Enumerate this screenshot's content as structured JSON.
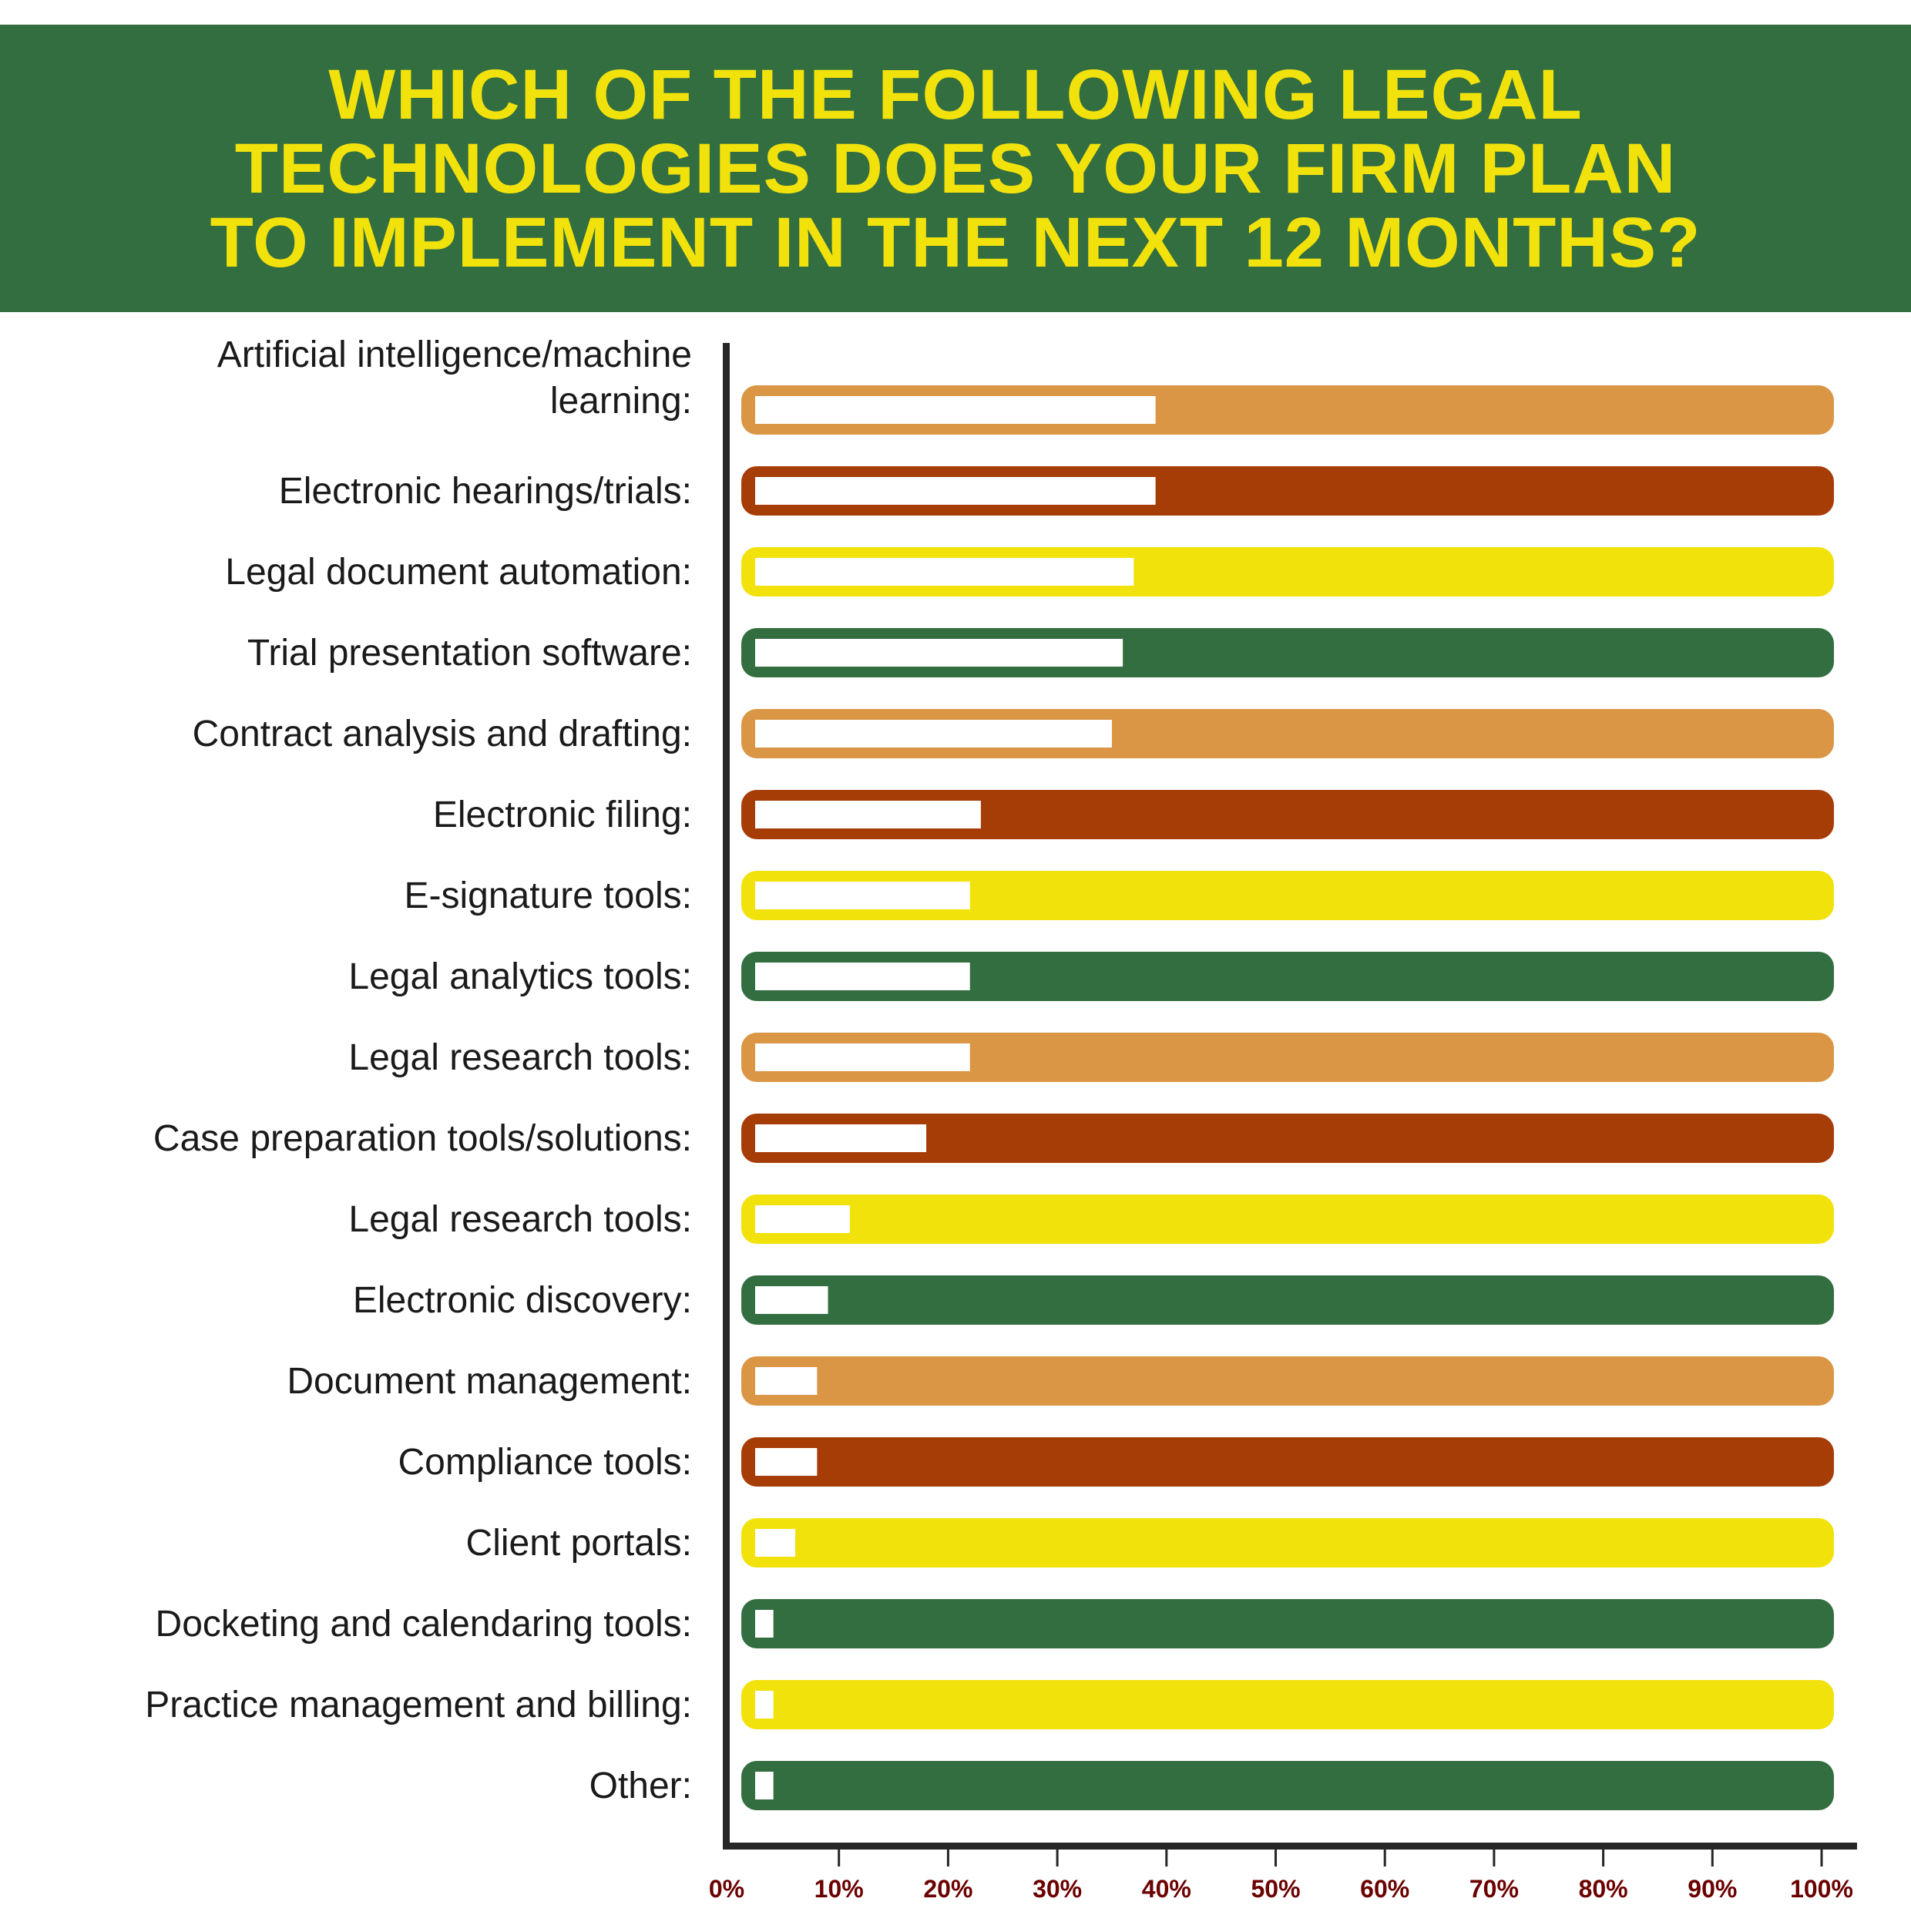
{
  "chart_data": {
    "type": "bar",
    "orientation": "horizontal",
    "title": "WHICH OF THE FOLLOWING LEGAL TECHNOLOGIES DOES YOUR FIRM PLAN TO IMPLEMENT IN THE NEXT 12 MONTHS?",
    "xlabel": "",
    "ylabel": "",
    "xlim": [
      0,
      100
    ],
    "x_ticks": [
      "0%",
      "10%",
      "20%",
      "30%",
      "40%",
      "50%",
      "60%",
      "70%",
      "80%",
      "90%",
      "100%"
    ],
    "categories": [
      [
        "Artificial intelligence/machine",
        "learning:"
      ],
      [
        "Electronic hearings/trials:"
      ],
      [
        "Legal document automation:"
      ],
      [
        "Trial presentation software:"
      ],
      [
        "Contract analysis and drafting:"
      ],
      [
        "Electronic filing:"
      ],
      [
        "E-signature tools:"
      ],
      [
        "Legal analytics tools:"
      ],
      [
        "Legal research tools:"
      ],
      [
        "Case preparation tools/solutions:"
      ],
      [
        "Legal research tools:"
      ],
      [
        "Electronic discovery:"
      ],
      [
        "Document management:"
      ],
      [
        "Compliance tools:"
      ],
      [
        "Client portals:"
      ],
      [
        "Docketing and calendaring tools:"
      ],
      [
        "Practice management and billing:"
      ],
      [
        "Other:"
      ]
    ],
    "values": [
      39,
      39,
      37,
      36,
      35,
      23,
      22,
      22,
      22,
      18,
      11,
      9,
      8,
      8,
      6,
      4,
      4,
      4
    ],
    "bar_colors": [
      "#DA9645",
      "#A63C06",
      "#F2E20B",
      "#336E41",
      "#DA9645",
      "#A63C06",
      "#F2E20B",
      "#336E41",
      "#DA9645",
      "#A63C06",
      "#F2E20B",
      "#336E41",
      "#DA9645",
      "#A63C06",
      "#F2E20B",
      "#336E41",
      "#F2E20B",
      "#336E41"
    ],
    "tick_color": "#6B0000",
    "grid": false
  },
  "header": {
    "lines": [
      "WHICH OF THE FOLLOWING LEGAL",
      "TECHNOLOGIES DOES YOUR FIRM PLAN",
      "TO IMPLEMENT IN THE NEXT 12 MONTHS?"
    ]
  }
}
